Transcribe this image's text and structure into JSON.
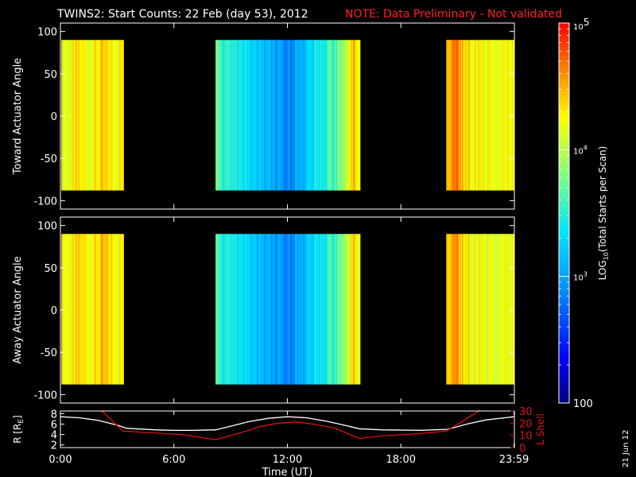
{
  "header": {
    "title": "TWINS2: Start Counts: 22 Feb (day  53), 2012",
    "note": "NOTE: Data Preliminary - Not validated"
  },
  "footer": {
    "date_stamp": "21 Jun 12",
    "xlabel": "Time (UT)"
  },
  "colors": {
    "background": "#000000",
    "axis": "#ffffff",
    "note": "#ff2020",
    "lshell": "#e01010",
    "radius": "#ffffff"
  },
  "chart_data": [
    {
      "type": "heatmap",
      "name": "toward",
      "ylabel": "Toward Actuator Angle",
      "ylim": [
        -110,
        110
      ],
      "yticks": [
        100,
        50,
        0,
        -50,
        -100
      ],
      "y_range_covered": [
        -88,
        90
      ],
      "x_unit": "hours UT",
      "xlim": [
        0,
        24
      ],
      "segments": [
        {
          "start": 0.05,
          "end": 3.35
        },
        {
          "start": 8.2,
          "end": 15.85
        },
        {
          "start": 20.4,
          "end": 23.98
        }
      ],
      "profile_log10": [
        [
          0,
          4.25
        ],
        [
          0.4,
          4.15
        ],
        [
          0.9,
          4.3
        ],
        [
          1.5,
          4.2
        ],
        [
          2.1,
          4.35
        ],
        [
          2.8,
          4.25
        ],
        [
          3.35,
          4.3
        ],
        [
          8.2,
          3.7
        ],
        [
          9.0,
          3.45
        ],
        [
          10.0,
          3.3
        ],
        [
          11.0,
          3.05
        ],
        [
          11.8,
          2.85
        ],
        [
          12.4,
          3.0
        ],
        [
          13.0,
          3.2
        ],
        [
          13.8,
          3.45
        ],
        [
          14.6,
          3.7
        ],
        [
          15.2,
          3.95
        ],
        [
          15.5,
          4.55
        ],
        [
          15.85,
          4.2
        ],
        [
          20.4,
          4.35
        ],
        [
          20.9,
          4.7
        ],
        [
          21.6,
          4.3
        ],
        [
          22.4,
          4.2
        ],
        [
          23.2,
          4.15
        ],
        [
          23.98,
          4.25
        ]
      ]
    },
    {
      "type": "heatmap",
      "name": "away",
      "ylabel": "Away Actuator Angle",
      "ylim": [
        -110,
        110
      ],
      "yticks": [
        100,
        50,
        0,
        -50,
        -100
      ],
      "y_range_covered": [
        -88,
        90
      ],
      "x_unit": "hours UT",
      "xlim": [
        0,
        24
      ],
      "segments": [
        {
          "start": 0.05,
          "end": 3.35
        },
        {
          "start": 8.2,
          "end": 15.85
        },
        {
          "start": 20.4,
          "end": 23.98
        }
      ],
      "profile_log10": [
        [
          0,
          4.3
        ],
        [
          0.5,
          4.2
        ],
        [
          1.0,
          4.35
        ],
        [
          1.6,
          4.25
        ],
        [
          2.2,
          4.4
        ],
        [
          2.8,
          4.3
        ],
        [
          3.35,
          4.25
        ],
        [
          8.2,
          3.6
        ],
        [
          9.0,
          3.4
        ],
        [
          10.0,
          3.25
        ],
        [
          11.0,
          3.0
        ],
        [
          11.8,
          2.85
        ],
        [
          12.4,
          3.0
        ],
        [
          13.0,
          3.15
        ],
        [
          13.8,
          3.4
        ],
        [
          14.6,
          3.65
        ],
        [
          15.2,
          3.9
        ],
        [
          15.5,
          4.5
        ],
        [
          15.85,
          4.15
        ],
        [
          20.4,
          4.3
        ],
        [
          20.9,
          4.6
        ],
        [
          21.6,
          4.25
        ],
        [
          22.4,
          4.15
        ],
        [
          23.2,
          4.1
        ],
        [
          23.98,
          4.2
        ]
      ]
    },
    {
      "type": "line",
      "name": "orbit",
      "xlabel": "Time (UT)",
      "x_ticks": [
        {
          "value": 0,
          "label": "0:00"
        },
        {
          "value": 6,
          "label": "6:00"
        },
        {
          "value": 12,
          "label": "12:00"
        },
        {
          "value": 18,
          "label": "18:00"
        },
        {
          "value": 23.98,
          "label": "23:59"
        }
      ],
      "left_axis": {
        "label": "R [R",
        "subscript": "E",
        "close": "]",
        "ylim": [
          1.5,
          8.5
        ],
        "ticks": [
          8,
          6,
          4,
          2
        ]
      },
      "right_axis": {
        "label": "L Shell",
        "ylim": [
          0,
          30
        ],
        "ticks": [
          30,
          20,
          10,
          0
        ],
        "tick_labels": [
          "30",
          "20",
          "10",
          "0"
        ]
      },
      "series": [
        {
          "name": "R",
          "axis": "left",
          "x": [
            0,
            1,
            2,
            3,
            3.5,
            5,
            6,
            7,
            8.2,
            9,
            10,
            11,
            12,
            13,
            14,
            15,
            15.8,
            17,
            19,
            20.5,
            21.5,
            22.5,
            23.98
          ],
          "y": [
            7.4,
            7.2,
            6.7,
            5.8,
            5.2,
            4.9,
            4.8,
            4.8,
            4.9,
            5.6,
            6.5,
            7.1,
            7.4,
            7.2,
            6.6,
            5.8,
            5.1,
            4.9,
            4.8,
            5.0,
            6.0,
            6.8,
            7.4
          ]
        },
        {
          "name": "L Shell",
          "axis": "right",
          "x": [
            2.2,
            3.3,
            5,
            6.5,
            8.2,
            9.5,
            10.5,
            11.5,
            12.5,
            13.5,
            14.5,
            15.8,
            17,
            19,
            20.4,
            21.3,
            22.2
          ],
          "y": [
            30,
            13.5,
            12,
            10.5,
            6.5,
            12,
            17,
            20,
            21,
            19,
            16,
            7.5,
            9.5,
            11.5,
            13.5,
            22,
            31
          ]
        }
      ]
    },
    {
      "type": "heatmap-colorbar",
      "label": "LOG",
      "label_sub": "10",
      "label_rest": "(Total Starts per Scan)",
      "log10_range": [
        2,
        5
      ],
      "ticks": [
        {
          "log10": 5,
          "label": "10",
          "exp": "5"
        },
        {
          "log10": 4,
          "label": "10",
          "exp": "4"
        },
        {
          "log10": 3,
          "label": "10",
          "exp": "3"
        },
        {
          "log10": 2,
          "label": "100",
          "exp": ""
        }
      ]
    }
  ]
}
